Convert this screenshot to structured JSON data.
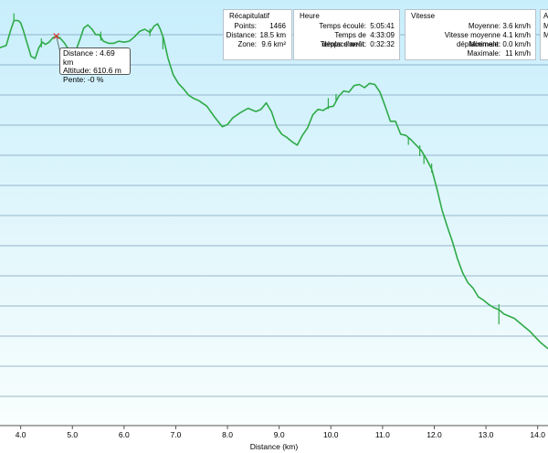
{
  "summary": {
    "title": "Récapitulatif",
    "rows": [
      {
        "label": "Points:",
        "value": "1466"
      },
      {
        "label": "Distance:",
        "value": "18.5 km"
      },
      {
        "label": "Zone:",
        "value": "9.6 km²"
      }
    ]
  },
  "time": {
    "title": "Heure",
    "rows": [
      {
        "label": "Temps écoulé:",
        "value": "5:05:41"
      },
      {
        "label": "Temps de déplacement:",
        "value": "4:33:09"
      },
      {
        "label": "Temps d'arrêt:",
        "value": "0:32:32"
      }
    ]
  },
  "speed": {
    "title": "Vitesse",
    "rows": [
      {
        "label": "Moyenne:",
        "value": "3.6 km/h"
      },
      {
        "label": "Vitesse moyenne déplacement:",
        "value": "4.1 km/h"
      },
      {
        "label": "Minimale:",
        "value": "0.0 km/h"
      },
      {
        "label": "Maximale:",
        "value": "11 km/h"
      }
    ]
  },
  "extra_panel": {
    "title": "A",
    "rows": [
      {
        "label": "M",
        "value": ""
      },
      {
        "label": "M",
        "value": ""
      }
    ]
  },
  "tooltip": {
    "distance": "Distance : 4.69 km",
    "altitude": "Altitude: 610.6 m",
    "slope": "Pente: -0 %"
  },
  "colors": {
    "line": "#2eaa47",
    "grid": "#7aa0bb",
    "bg_top": "#c8eefc",
    "bg_bottom": "#f8fefd",
    "marker": "#e03030"
  },
  "chart_data": {
    "type": "line",
    "xlabel": "Distance (km)",
    "xlim": [
      3.6,
      14.2
    ],
    "x_ticks": [
      4.0,
      5.0,
      6.0,
      7.0,
      8.0,
      9.0,
      10.0,
      11.0,
      12.0,
      13.0,
      14.0
    ],
    "x_tick_labels": [
      "4.0",
      "5.0",
      "6.0",
      "7.0",
      "8.0",
      "9.0",
      "10.0",
      "11.0",
      "12.0",
      "13.0",
      "14.0"
    ],
    "marker_x": 4.69,
    "series": [
      {
        "x": [
          3.6,
          3.72,
          3.8,
          3.87,
          3.95,
          4.0,
          4.05,
          4.1,
          4.2,
          4.28,
          4.35,
          4.42,
          4.48,
          4.55,
          4.62,
          4.69,
          4.76,
          4.85,
          4.93,
          5.0,
          5.08,
          5.15,
          5.22,
          5.3,
          5.38,
          5.45,
          5.52,
          5.6,
          5.7,
          5.8,
          5.9,
          6.0,
          6.1,
          6.2,
          6.3,
          6.4,
          6.5,
          6.58,
          6.65,
          6.7,
          6.76,
          6.85,
          6.95,
          7.05,
          7.15,
          7.25,
          7.35,
          7.45,
          7.6,
          7.75,
          7.9,
          8.0,
          8.1,
          8.25,
          8.4,
          8.55,
          8.65,
          8.75,
          8.85,
          8.95,
          9.05,
          9.15,
          9.25,
          9.35,
          9.45,
          9.55,
          9.65,
          9.75,
          9.85,
          9.95,
          10.05,
          10.15,
          10.25,
          10.35,
          10.45,
          10.55,
          10.65,
          10.75,
          10.85,
          10.95,
          11.05,
          11.15,
          11.25,
          11.35,
          11.45,
          11.55,
          11.65,
          11.75,
          11.85,
          11.95,
          12.05,
          12.15,
          12.25,
          12.35,
          12.45,
          12.55,
          12.65,
          12.75,
          12.85,
          12.95,
          13.05,
          13.15,
          13.25,
          13.35,
          13.45,
          13.55,
          13.65,
          13.75,
          13.85,
          13.95,
          14.05,
          14.2
        ],
        "y": [
          600,
          602,
          615,
          625,
          625,
          623,
          616,
          608,
          592,
          590,
          600,
          605,
          603,
          605,
          609,
          610.6,
          609,
          604,
          598,
          594,
          599,
          608,
          618,
          621,
          617,
          612,
          612,
          606,
          604,
          604,
          606,
          605,
          606,
          610,
          615,
          617,
          614,
          620,
          622,
          617,
          609,
          590,
          575,
          567,
          562,
          556,
          553,
          551,
          546,
          536,
          527,
          529,
          535,
          540,
          544,
          541,
          543,
          549,
          541,
          527,
          520,
          517,
          513,
          510,
          519,
          526,
          538,
          543,
          542,
          545,
          546,
          555,
          560,
          559,
          565,
          566,
          563,
          567,
          566,
          559,
          546,
          532,
          532,
          520,
          519,
          515,
          510,
          505,
          497,
          488,
          470,
          450,
          435,
          421,
          405,
          392,
          383,
          378,
          370,
          367,
          363,
          360,
          358,
          354,
          352,
          350,
          346,
          342,
          338,
          333,
          328,
          322
        ]
      }
    ],
    "ylim": [
      251,
      644
    ]
  }
}
